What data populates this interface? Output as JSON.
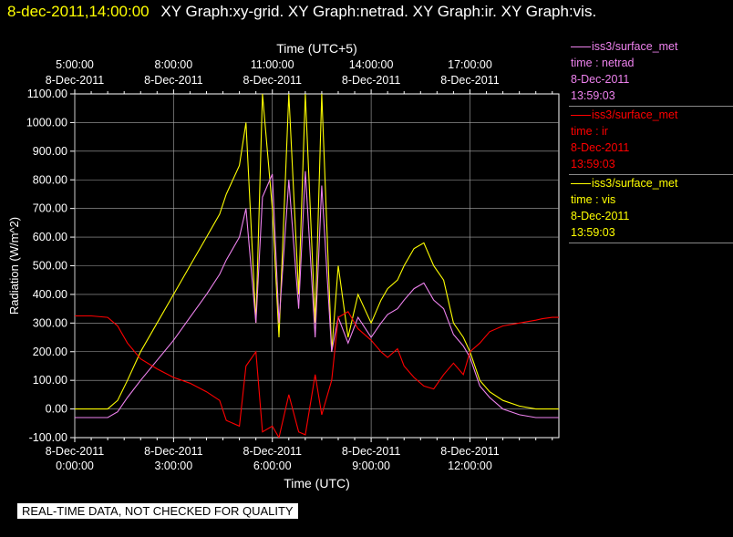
{
  "header": {
    "datetime": "8-dec-2011,14:00:00",
    "plots": "XY Graph:xy-grid.  XY Graph:netrad.  XY Graph:ir.  XY Graph:vis."
  },
  "notice": "REAL-TIME DATA, NOT CHECKED FOR QUALITY",
  "legend": [
    {
      "station": "iss3/surface_met",
      "field": "time : netrad",
      "date": "8-Dec-2011",
      "time": "13:59:03",
      "color": "#ee82ee"
    },
    {
      "station": "iss3/surface_met",
      "field": "time : ir",
      "date": "8-Dec-2011",
      "time": "13:59:03",
      "color": "#ff0000"
    },
    {
      "station": "iss3/surface_met",
      "field": "time : vis",
      "date": "8-Dec-2011",
      "time": "13:59:03",
      "color": "#ffff00"
    }
  ],
  "chart_data": {
    "type": "line",
    "title": "",
    "xlabel": "Time (UTC)",
    "x2label": "Time (UTC+5)",
    "ylabel": "Radiation (W/m^2)",
    "ylim": [
      -100,
      1100
    ],
    "xlim": [
      0,
      14.7
    ],
    "grid": true,
    "yticks": [
      "-100.00",
      "0.00",
      "100.00",
      "200.00",
      "300.00",
      "400.00",
      "500.00",
      "600.00",
      "700.00",
      "800.00",
      "900.00",
      "1000.00",
      "1100.00"
    ],
    "xticks_bottom": [
      {
        "x": 0,
        "date": "8-Dec-2011",
        "time": "0:00:00"
      },
      {
        "x": 3,
        "date": "8-Dec-2011",
        "time": "3:00:00"
      },
      {
        "x": 6,
        "date": "8-Dec-2011",
        "time": "6:00:00"
      },
      {
        "x": 9,
        "date": "8-Dec-2011",
        "time": "9:00:00"
      },
      {
        "x": 12,
        "date": "8-Dec-2011",
        "time": "12:00:00"
      }
    ],
    "xticks_top": [
      {
        "x": 0,
        "time": "5:00:00",
        "date": "8-Dec-2011"
      },
      {
        "x": 3,
        "time": "8:00:00",
        "date": "8-Dec-2011"
      },
      {
        "x": 6,
        "time": "11:00:00",
        "date": "8-Dec-2011"
      },
      {
        "x": 9,
        "time": "14:00:00",
        "date": "8-Dec-2011"
      },
      {
        "x": 12,
        "time": "17:00:00",
        "date": "8-Dec-2011"
      }
    ],
    "series": [
      {
        "name": "vis",
        "color": "#ffff00",
        "x": [
          0,
          1.0,
          1.3,
          1.6,
          2.0,
          2.5,
          3.0,
          3.5,
          4.0,
          4.4,
          4.6,
          5.0,
          5.2,
          5.5,
          5.7,
          6.0,
          6.2,
          6.5,
          6.8,
          7.0,
          7.3,
          7.5,
          7.8,
          8.0,
          8.3,
          8.6,
          9.0,
          9.3,
          9.5,
          9.8,
          10.0,
          10.3,
          10.6,
          10.9,
          11.2,
          11.5,
          11.8,
          12.0,
          12.3,
          12.6,
          13.0,
          13.5,
          14.0,
          14.2,
          14.5,
          14.7
        ],
        "y": [
          0,
          0,
          30,
          100,
          200,
          300,
          400,
          500,
          600,
          680,
          750,
          850,
          1000,
          300,
          1100,
          700,
          250,
          1100,
          400,
          1100,
          300,
          1100,
          200,
          500,
          250,
          400,
          300,
          380,
          420,
          450,
          500,
          560,
          580,
          500,
          450,
          300,
          250,
          200,
          100,
          60,
          30,
          10,
          0,
          0,
          0,
          0
        ]
      },
      {
        "name": "netrad",
        "color": "#ee82ee",
        "x": [
          0,
          1.0,
          1.3,
          1.6,
          2.0,
          2.5,
          3.0,
          3.5,
          4.0,
          4.4,
          4.6,
          5.0,
          5.2,
          5.5,
          5.7,
          6.0,
          6.2,
          6.5,
          6.8,
          7.0,
          7.3,
          7.5,
          7.8,
          8.0,
          8.3,
          8.6,
          9.0,
          9.3,
          9.5,
          9.8,
          10.0,
          10.3,
          10.6,
          10.9,
          11.2,
          11.5,
          11.8,
          12.0,
          12.3,
          12.6,
          13.0,
          13.5,
          14.0,
          14.2,
          14.5,
          14.7
        ],
        "y": [
          -30,
          -30,
          -10,
          40,
          100,
          170,
          240,
          320,
          400,
          470,
          520,
          600,
          700,
          300,
          740,
          820,
          300,
          800,
          350,
          830,
          250,
          780,
          200,
          320,
          230,
          320,
          250,
          300,
          330,
          350,
          380,
          420,
          440,
          380,
          350,
          260,
          220,
          180,
          80,
          40,
          0,
          -20,
          -30,
          -30,
          -30,
          -30
        ]
      },
      {
        "name": "ir",
        "color": "#ff0000",
        "x": [
          0,
          0.5,
          1.0,
          1.3,
          1.6,
          2.0,
          2.5,
          3.0,
          3.5,
          4.0,
          4.4,
          4.6,
          5.0,
          5.2,
          5.5,
          5.7,
          6.0,
          6.2,
          6.5,
          6.8,
          7.0,
          7.3,
          7.5,
          7.8,
          8.0,
          8.3,
          8.6,
          9.0,
          9.3,
          9.5,
          9.8,
          10.0,
          10.3,
          10.6,
          10.9,
          11.2,
          11.5,
          11.8,
          12.0,
          12.3,
          12.6,
          13.0,
          13.5,
          14.0,
          14.2,
          14.5,
          14.7
        ],
        "y": [
          325,
          325,
          320,
          290,
          230,
          175,
          140,
          110,
          90,
          60,
          30,
          -40,
          -60,
          150,
          200,
          -80,
          -60,
          -100,
          50,
          -80,
          -90,
          120,
          -20,
          100,
          320,
          340,
          280,
          240,
          200,
          180,
          210,
          150,
          110,
          80,
          70,
          120,
          160,
          120,
          200,
          230,
          270,
          290,
          300,
          310,
          315,
          320,
          320
        ]
      }
    ]
  }
}
